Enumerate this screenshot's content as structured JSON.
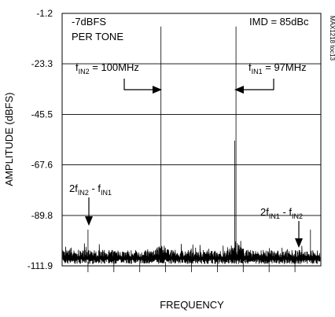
{
  "chart_data": {
    "type": "line",
    "title": "",
    "xlabel": "FREQUENCY",
    "ylabel": "AMPLITUDE (dBFS)",
    "yticks": [
      "-1.2",
      "-23.3",
      "-45.5",
      "-67.6",
      "-89.8",
      "-111.9"
    ],
    "ylim": [
      -111.9,
      -1.2
    ],
    "grid": true,
    "series": [
      {
        "values_note_none": "",
        "tones": [
          {
            "x_fraction": 0.382,
            "y": -7
          },
          {
            "x_fraction": 0.672,
            "y": -7
          }
        ],
        "noise_floor": -108
      }
    ],
    "annotations": {
      "level": "-7dBFS",
      "level2": "PER TONE",
      "imd": "IMD = 85dBc",
      "fin2": {
        "main": "f",
        "sub": "IN2",
        "rest": " = 100MHz"
      },
      "fin1": {
        "main": "f",
        "sub": "IN1",
        "rest": " = 97MHz"
      },
      "imd_left": {
        "a": "2f",
        "b": "IN2",
        "c": " - f",
        "d": "IN1"
      },
      "imd_right": {
        "a": "2f",
        "b": "IN1",
        "c": " - f",
        "d": "IN2"
      },
      "side_code": "MAX1218 toc13"
    }
  }
}
